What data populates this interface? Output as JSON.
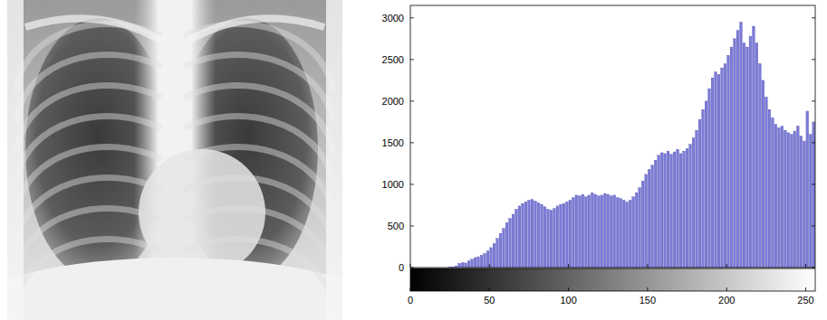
{
  "chart_data": {
    "type": "histogram",
    "bins": [
      0,
      2,
      4,
      6,
      8,
      10,
      12,
      14,
      16,
      18,
      20,
      22,
      24,
      26,
      28,
      30,
      32,
      34,
      36,
      38,
      40,
      42,
      44,
      46,
      48,
      50,
      52,
      54,
      56,
      58,
      60,
      62,
      64,
      66,
      68,
      70,
      72,
      74,
      76,
      78,
      80,
      82,
      84,
      86,
      88,
      90,
      92,
      94,
      96,
      98,
      100,
      102,
      104,
      106,
      108,
      110,
      112,
      114,
      116,
      118,
      120,
      122,
      124,
      126,
      128,
      130,
      132,
      134,
      136,
      138,
      140,
      142,
      144,
      146,
      148,
      150,
      152,
      154,
      156,
      158,
      160,
      162,
      164,
      166,
      168,
      170,
      172,
      174,
      176,
      178,
      180,
      182,
      184,
      186,
      188,
      190,
      192,
      194,
      196,
      198,
      200,
      202,
      204,
      206,
      208,
      210,
      212,
      214,
      216,
      218,
      220,
      222,
      224,
      226,
      228,
      230,
      232,
      234,
      236,
      238,
      240,
      242,
      244,
      246,
      248,
      250,
      252,
      254,
      256
    ],
    "values": [
      0,
      0,
      0,
      0,
      0,
      0,
      0,
      0,
      0,
      0,
      0,
      0,
      5,
      10,
      20,
      50,
      60,
      55,
      80,
      100,
      120,
      130,
      150,
      170,
      200,
      240,
      290,
      350,
      410,
      470,
      540,
      590,
      640,
      700,
      740,
      770,
      790,
      810,
      820,
      800,
      780,
      760,
      730,
      700,
      690,
      710,
      740,
      760,
      770,
      790,
      810,
      840,
      870,
      860,
      880,
      850,
      870,
      900,
      880,
      860,
      870,
      890,
      880,
      860,
      870,
      840,
      830,
      810,
      790,
      810,
      850,
      900,
      960,
      1040,
      1120,
      1180,
      1230,
      1290,
      1350,
      1380,
      1370,
      1400,
      1360,
      1390,
      1420,
      1370,
      1400,
      1430,
      1480,
      1560,
      1650,
      1780,
      1900,
      2000,
      2150,
      2280,
      2350,
      2320,
      2400,
      2450,
      2550,
      2650,
      2750,
      2850,
      2950,
      2700,
      2650,
      2780,
      2900,
      2700,
      2450,
      2250,
      2050,
      1900,
      1800,
      1720,
      1680,
      1700,
      1650,
      1620,
      1600,
      1640,
      1700,
      1580,
      1520,
      1880,
      1600,
      1750
    ],
    "color": "#7b7bd8",
    "xlim": [
      0,
      256
    ],
    "ylim": [
      0,
      3150
    ],
    "xticks": [
      0,
      50,
      100,
      150,
      200,
      250
    ],
    "yticks": [
      0,
      500,
      1000,
      1500,
      2000,
      2500,
      3000
    ]
  }
}
